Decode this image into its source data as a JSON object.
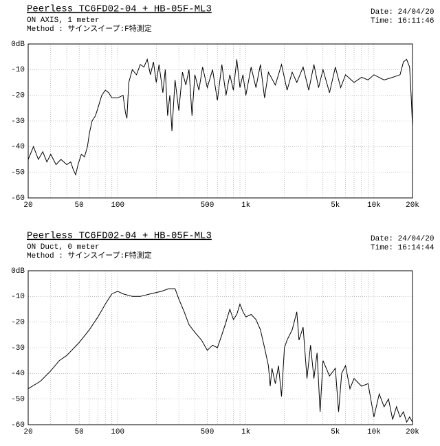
{
  "chart_data": [
    {
      "type": "line",
      "title": "Peerless TC6FD02-04 + HB-05F-ML3",
      "subtitle": "ON AXIS, 1 meter",
      "method": "Method : サインスイープ:F特測定",
      "date": "Date: 24/04/20",
      "time": "Time: 16:11:46",
      "color": "#000000",
      "log_x": true,
      "grid": true,
      "xlim": [
        20,
        20000
      ],
      "ylim": [
        -60,
        0
      ],
      "xticks": [
        20,
        50,
        100,
        500,
        {
          "value": 1000,
          "label": "1k"
        },
        {
          "value": 5000,
          "label": "5k"
        },
        {
          "value": 10000,
          "label": "10k"
        },
        {
          "value": 20000,
          "label": "20k"
        }
      ],
      "xgrid_minor": [
        30,
        40,
        60,
        70,
        80,
        90,
        200,
        300,
        400,
        600,
        700,
        800,
        900,
        2000,
        3000,
        4000,
        6000,
        7000,
        8000,
        9000
      ],
      "yticks": [
        {
          "value": 0,
          "label": "0dB"
        },
        -10,
        -20,
        -30,
        -40,
        -50,
        -60
      ],
      "x": [
        20,
        22,
        24,
        26,
        28,
        30,
        33,
        36,
        40,
        43,
        45,
        47,
        49,
        52,
        55,
        58,
        60,
        63,
        67,
        70,
        75,
        80,
        85,
        90,
        100,
        110,
        115,
        118,
        122,
        130,
        140,
        150,
        160,
        170,
        180,
        190,
        200,
        210,
        225,
        235,
        245,
        255,
        265,
        280,
        300,
        320,
        340,
        360,
        380,
        400,
        430,
        460,
        500,
        550,
        600,
        650,
        700,
        750,
        800,
        850,
        900,
        950,
        1000,
        1100,
        1200,
        1300,
        1400,
        1500,
        1700,
        1900,
        2100,
        2300,
        2500,
        2800,
        3100,
        3400,
        3700,
        4000,
        4500,
        5000,
        5500,
        6000,
        7000,
        8000,
        9000,
        10000,
        12000,
        14000,
        16000,
        17000,
        18000,
        19000,
        19500,
        20000
      ],
      "values": [
        -45,
        -40,
        -45,
        -42,
        -46,
        -43,
        -47,
        -45,
        -47,
        -46,
        -49,
        -51,
        -47,
        -43,
        -44,
        -40,
        -35,
        -30,
        -28,
        -25,
        -20,
        -18,
        -19,
        -21,
        -21,
        -20,
        -27,
        -29,
        -15,
        -10,
        -12,
        -8,
        -9,
        -6,
        -12,
        -7,
        -15,
        -8,
        -19,
        -10,
        -28,
        -20,
        -34,
        -14,
        -26,
        -11,
        -16,
        -10,
        -28,
        -12,
        -18,
        -9,
        -17,
        -10,
        -22,
        -8,
        -20,
        -12,
        -18,
        -6,
        -17,
        -12,
        -20,
        -9,
        -17,
        -8,
        -21,
        -11,
        -16,
        -8,
        -18,
        -11,
        -15,
        -9,
        -18,
        -8,
        -17,
        -10,
        -19,
        -9,
        -17,
        -12,
        -15,
        -13,
        -14,
        -12,
        -14,
        -13,
        -12,
        -7,
        -6,
        -9,
        -20,
        -32
      ]
    },
    {
      "type": "line",
      "title": "Peerless TC6FD02-04 + HB-05F-ML3",
      "subtitle": "ON Duct, 0 meter",
      "method": "Method : サインスイープ:F特測定",
      "date": "Date: 24/04/20",
      "time": "Time: 16:14:44",
      "color": "#000000",
      "log_x": true,
      "grid": true,
      "xlim": [
        20,
        20000
      ],
      "ylim": [
        -60,
        0
      ],
      "xticks": [
        20,
        50,
        100,
        500,
        {
          "value": 1000,
          "label": "1k"
        },
        {
          "value": 5000,
          "label": "5k"
        },
        {
          "value": 10000,
          "label": "10k"
        },
        {
          "value": 20000,
          "label": "20k"
        }
      ],
      "xgrid_minor": [
        30,
        40,
        60,
        70,
        80,
        90,
        200,
        300,
        400,
        600,
        700,
        800,
        900,
        2000,
        3000,
        4000,
        6000,
        7000,
        8000,
        9000
      ],
      "yticks": [
        {
          "value": 0,
          "label": "0dB"
        },
        -10,
        -20,
        -30,
        -40,
        -50,
        -60
      ],
      "x": [
        20,
        25,
        30,
        35,
        40,
        50,
        60,
        70,
        80,
        90,
        100,
        110,
        130,
        150,
        180,
        220,
        250,
        280,
        300,
        330,
        360,
        400,
        450,
        500,
        550,
        600,
        650,
        700,
        750,
        800,
        850,
        900,
        950,
        1000,
        1100,
        1200,
        1300,
        1400,
        1500,
        1550,
        1600,
        1700,
        1800,
        1900,
        2000,
        2100,
        2300,
        2500,
        2600,
        2800,
        3000,
        3200,
        3400,
        3600,
        3800,
        4000,
        4500,
        5000,
        5300,
        5600,
        6000,
        6500,
        7000,
        8000,
        9000,
        10000,
        11000,
        12000,
        13000,
        14000,
        15000,
        16000,
        17000,
        18000,
        19000,
        20000
      ],
      "values": [
        -46,
        -43,
        -39,
        -35,
        -33,
        -28,
        -23,
        -18,
        -13,
        -9,
        -8,
        -9,
        -10,
        -10,
        -9,
        -8,
        -7,
        -7,
        -11,
        -16,
        -21,
        -24,
        -27,
        -31,
        -29,
        -30,
        -25,
        -20,
        -15,
        -19,
        -17,
        -13,
        -16,
        -18,
        -17,
        -19,
        -23,
        -30,
        -37,
        -45,
        -38,
        -44,
        -37,
        -49,
        -30,
        -27,
        -23,
        -16,
        -27,
        -22,
        -42,
        -29,
        -42,
        -32,
        -55,
        -35,
        -41,
        -38,
        -55,
        -40,
        -37,
        -46,
        -42,
        -45,
        -44,
        -57,
        -48,
        -53,
        -50,
        -58,
        -53,
        -57,
        -55,
        -59,
        -57,
        -59
      ]
    }
  ]
}
